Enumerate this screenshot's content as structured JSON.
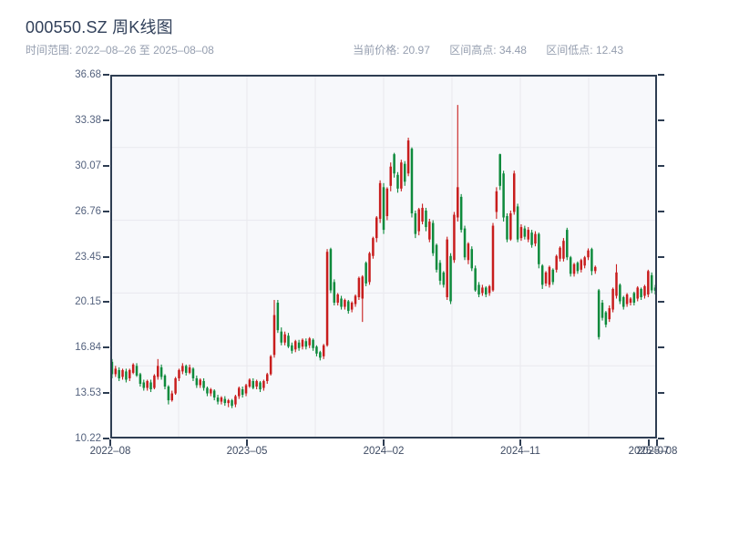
{
  "header": {
    "title": "000550.SZ 周K线图",
    "subtitle": "时间范围: 2022–08–26 至 2025–08–08"
  },
  "stats": {
    "current_label": "当前价格:",
    "current_value": "20.97",
    "high_label": "区间高点:",
    "high_value": "34.48",
    "low_label": "区间低点:",
    "low_value": "12.43"
  },
  "chart_data": {
    "type": "candlestick",
    "title": "000550.SZ 周K线图",
    "frequency": "weekly",
    "date_start": "2022-08-26",
    "date_end": "2025-08-08",
    "current_price": 20.97,
    "period_high": 34.48,
    "period_low": 12.43,
    "y_min": 10.22,
    "y_max": 36.68,
    "y_ticks": [
      "36.68",
      "33.38",
      "30.07",
      "26.76",
      "23.45",
      "20.15",
      "16.84",
      "13.53",
      "10.22"
    ],
    "x_ticks": [
      {
        "label": "2022–08",
        "f": 0
      },
      {
        "label": "2023–05",
        "f": 0.25
      },
      {
        "label": "2024–02",
        "f": 0.5
      },
      {
        "label": "2024–11",
        "f": 0.75
      },
      {
        "label": "2025–07",
        "f": 0.985
      },
      {
        "label": "2025–08",
        "f": 1
      }
    ],
    "up_color": "#c81d1d",
    "down_color": "#0e8a3c",
    "grid": {
      "v_divisions": 8,
      "h_divisions": 5,
      "color": "#e9e9ee"
    },
    "axis_color": "#2e3d52",
    "plot_bg": "#f7f8fb",
    "candles_format": [
      "open",
      "high",
      "low",
      "close"
    ],
    "candles": [
      [
        15.8,
        16.0,
        14.6,
        14.9
      ],
      [
        14.9,
        15.5,
        14.7,
        15.3
      ],
      [
        15.2,
        15.4,
        14.4,
        14.6
      ],
      [
        14.7,
        15.3,
        14.5,
        15.2
      ],
      [
        15.1,
        15.3,
        14.3,
        14.5
      ],
      [
        14.6,
        15.3,
        14.4,
        15.2
      ],
      [
        15.0,
        15.7,
        14.9,
        15.6
      ],
      [
        15.5,
        15.7,
        14.7,
        14.8
      ],
      [
        14.9,
        15.0,
        14.0,
        14.2
      ],
      [
        14.3,
        14.5,
        13.7,
        13.9
      ],
      [
        13.9,
        14.5,
        13.7,
        14.4
      ],
      [
        14.3,
        14.5,
        13.6,
        13.8
      ],
      [
        13.9,
        14.9,
        13.8,
        14.8
      ],
      [
        14.7,
        16.0,
        14.5,
        15.5
      ],
      [
        15.4,
        15.6,
        14.5,
        14.7
      ],
      [
        14.8,
        14.9,
        13.8,
        14.0
      ],
      [
        14.0,
        14.1,
        12.7,
        13.0
      ],
      [
        13.0,
        13.7,
        12.9,
        13.5
      ],
      [
        13.5,
        14.7,
        13.4,
        14.6
      ],
      [
        14.6,
        15.3,
        14.4,
        15.2
      ],
      [
        15.1,
        15.7,
        14.9,
        15.5
      ],
      [
        15.5,
        15.6,
        14.8,
        15.0
      ],
      [
        15.0,
        15.6,
        14.9,
        15.4
      ],
      [
        15.3,
        15.4,
        14.4,
        14.6
      ],
      [
        14.6,
        14.8,
        13.9,
        14.1
      ],
      [
        14.1,
        14.6,
        13.9,
        14.5
      ],
      [
        14.4,
        14.6,
        13.7,
        13.9
      ],
      [
        13.9,
        14.0,
        13.3,
        13.5
      ],
      [
        13.5,
        13.9,
        13.3,
        13.8
      ],
      [
        13.7,
        13.8,
        13.0,
        13.2
      ],
      [
        13.2,
        13.4,
        12.7,
        12.9
      ],
      [
        12.9,
        13.3,
        12.7,
        13.2
      ],
      [
        13.1,
        13.3,
        12.6,
        12.8
      ],
      [
        12.8,
        13.1,
        12.5,
        13.0
      ],
      [
        13.0,
        13.1,
        12.43,
        12.6
      ],
      [
        12.7,
        13.4,
        12.5,
        13.3
      ],
      [
        13.3,
        14.0,
        13.1,
        13.9
      ],
      [
        13.8,
        14.0,
        13.2,
        13.4
      ],
      [
        13.5,
        14.2,
        13.3,
        14.1
      ],
      [
        14.0,
        14.6,
        13.9,
        14.5
      ],
      [
        14.4,
        14.6,
        13.8,
        13.9
      ],
      [
        14.0,
        14.5,
        13.8,
        14.4
      ],
      [
        14.3,
        14.4,
        13.6,
        13.8
      ],
      [
        13.9,
        14.5,
        13.7,
        14.4
      ],
      [
        14.4,
        15.0,
        14.2,
        14.9
      ],
      [
        14.9,
        16.3,
        14.8,
        16.2
      ],
      [
        16.3,
        20.3,
        16.1,
        19.2
      ],
      [
        20.1,
        20.3,
        17.9,
        18.1
      ],
      [
        18.0,
        18.3,
        17.0,
        17.2
      ],
      [
        17.2,
        18.0,
        17.0,
        17.8
      ],
      [
        17.7,
        17.9,
        16.8,
        16.9
      ],
      [
        17.0,
        17.2,
        16.4,
        16.6
      ],
      [
        16.7,
        17.4,
        16.5,
        17.3
      ],
      [
        17.2,
        17.4,
        16.6,
        16.8
      ],
      [
        16.9,
        17.5,
        16.7,
        17.4
      ],
      [
        17.3,
        17.5,
        16.7,
        16.9
      ],
      [
        17.0,
        17.6,
        16.8,
        17.5
      ],
      [
        17.4,
        17.5,
        16.6,
        16.8
      ],
      [
        16.9,
        17.0,
        16.2,
        16.4
      ],
      [
        16.5,
        16.6,
        15.9,
        16.1
      ],
      [
        16.2,
        17.1,
        16.0,
        17.0
      ],
      [
        17.0,
        24.0,
        16.9,
        23.8
      ],
      [
        24.0,
        24.1,
        20.8,
        21.0
      ],
      [
        21.6,
        21.8,
        19.9,
        20.1
      ],
      [
        20.1,
        20.8,
        19.9,
        20.7
      ],
      [
        20.4,
        20.6,
        19.6,
        19.8
      ],
      [
        19.8,
        20.4,
        19.6,
        20.3
      ],
      [
        20.2,
        20.3,
        19.3,
        19.5
      ],
      [
        19.6,
        20.2,
        19.4,
        20.1
      ],
      [
        20.0,
        20.7,
        19.8,
        20.6
      ],
      [
        20.5,
        22.0,
        20.3,
        21.9
      ],
      [
        20.4,
        22.1,
        18.7,
        22.0
      ],
      [
        23.0,
        23.1,
        21.3,
        21.5
      ],
      [
        21.6,
        23.8,
        21.4,
        23.7
      ],
      [
        23.5,
        24.9,
        23.3,
        24.8
      ],
      [
        24.8,
        26.4,
        24.5,
        26.3
      ],
      [
        26.2,
        29.0,
        25.9,
        28.8
      ],
      [
        28.5,
        28.8,
        25.1,
        25.4
      ],
      [
        26.4,
        28.5,
        26.1,
        28.4
      ],
      [
        28.6,
        30.3,
        28.2,
        30.0
      ],
      [
        30.9,
        31.0,
        29.2,
        29.5
      ],
      [
        29.4,
        29.6,
        28.1,
        28.4
      ],
      [
        28.4,
        30.5,
        28.2,
        30.3
      ],
      [
        30.2,
        30.4,
        28.6,
        28.9
      ],
      [
        29.5,
        32.1,
        29.3,
        31.9
      ],
      [
        31.3,
        31.4,
        26.3,
        26.6
      ],
      [
        26.6,
        26.8,
        24.8,
        25.1
      ],
      [
        25.3,
        27.0,
        25.0,
        26.9
      ],
      [
        26.0,
        27.3,
        25.8,
        27.0
      ],
      [
        26.8,
        27.0,
        25.3,
        25.6
      ],
      [
        24.7,
        26.2,
        24.5,
        26.0
      ],
      [
        25.9,
        26.1,
        23.5,
        23.7
      ],
      [
        24.3,
        24.4,
        22.3,
        22.5
      ],
      [
        23.0,
        23.2,
        21.4,
        21.7
      ],
      [
        22.3,
        22.4,
        21.2,
        21.4
      ],
      [
        20.5,
        24.9,
        20.3,
        24.7
      ],
      [
        23.5,
        23.7,
        20.0,
        20.2
      ],
      [
        23.2,
        26.7,
        23.0,
        26.5
      ],
      [
        26.3,
        34.48,
        26.0,
        28.5
      ],
      [
        27.8,
        28.0,
        25.2,
        25.4
      ],
      [
        25.5,
        25.7,
        23.2,
        23.4
      ],
      [
        23.2,
        24.5,
        22.9,
        24.4
      ],
      [
        24.0,
        24.2,
        22.4,
        22.6
      ],
      [
        22.6,
        22.8,
        20.9,
        21.0
      ],
      [
        21.4,
        21.6,
        20.5,
        20.7
      ],
      [
        20.8,
        21.4,
        20.6,
        21.2
      ],
      [
        21.2,
        21.3,
        20.5,
        20.7
      ],
      [
        20.8,
        21.4,
        20.6,
        21.3
      ],
      [
        21.0,
        25.9,
        20.9,
        25.7
      ],
      [
        26.7,
        28.5,
        26.2,
        28.2
      ],
      [
        30.9,
        30.94,
        28.3,
        28.6
      ],
      [
        29.5,
        29.7,
        26.0,
        26.3
      ],
      [
        26.4,
        26.6,
        24.5,
        24.7
      ],
      [
        24.7,
        26.8,
        24.6,
        26.6
      ],
      [
        26.7,
        29.7,
        26.5,
        29.5
      ],
      [
        27.1,
        27.3,
        24.5,
        24.7
      ],
      [
        24.8,
        25.8,
        24.6,
        25.6
      ],
      [
        25.5,
        25.7,
        24.7,
        24.9
      ],
      [
        24.7,
        25.6,
        24.5,
        25.4
      ],
      [
        25.2,
        25.4,
        24.1,
        24.3
      ],
      [
        24.4,
        25.3,
        24.2,
        25.1
      ],
      [
        25.1,
        25.2,
        22.6,
        22.9
      ],
      [
        22.8,
        22.9,
        21.1,
        21.4
      ],
      [
        21.5,
        22.4,
        21.3,
        22.3
      ],
      [
        21.4,
        22.8,
        21.2,
        22.7
      ],
      [
        22.5,
        22.6,
        21.4,
        21.6
      ],
      [
        22.5,
        23.6,
        22.3,
        23.5
      ],
      [
        23.3,
        24.2,
        23.1,
        24.1
      ],
      [
        23.3,
        24.8,
        23.1,
        24.6
      ],
      [
        25.4,
        25.55,
        23.2,
        23.4
      ],
      [
        23.4,
        23.5,
        22.0,
        22.2
      ],
      [
        22.2,
        23.0,
        22.0,
        22.9
      ],
      [
        23.0,
        23.1,
        22.2,
        22.4
      ],
      [
        22.5,
        23.3,
        22.3,
        23.2
      ],
      [
        22.8,
        23.5,
        22.6,
        23.4
      ],
      [
        23.4,
        24.05,
        23.2,
        23.9
      ],
      [
        24.0,
        24.1,
        22.1,
        22.4
      ],
      [
        22.4,
        22.8,
        22.2,
        22.7
      ],
      [
        21.0,
        21.1,
        17.42,
        17.6
      ],
      [
        20.1,
        20.3,
        18.8,
        19.0
      ],
      [
        19.4,
        19.5,
        18.3,
        18.5
      ],
      [
        18.9,
        19.9,
        18.7,
        19.7
      ],
      [
        19.6,
        21.2,
        19.4,
        21.1
      ],
      [
        20.6,
        22.9,
        20.4,
        22.3
      ],
      [
        21.4,
        21.5,
        20.0,
        20.2
      ],
      [
        20.5,
        20.6,
        19.6,
        19.8
      ],
      [
        20.0,
        20.8,
        19.8,
        20.7
      ],
      [
        20.1,
        20.5,
        19.9,
        20.4
      ],
      [
        20.8,
        20.9,
        19.9,
        20.1
      ],
      [
        20.4,
        21.3,
        20.2,
        21.2
      ],
      [
        21.1,
        21.2,
        20.3,
        20.5
      ],
      [
        20.6,
        21.4,
        20.4,
        21.3
      ],
      [
        20.7,
        22.5,
        20.5,
        22.4
      ],
      [
        22.1,
        22.3,
        20.8,
        21.0
      ],
      [
        21.2,
        21.4,
        20.7,
        20.97
      ]
    ]
  }
}
